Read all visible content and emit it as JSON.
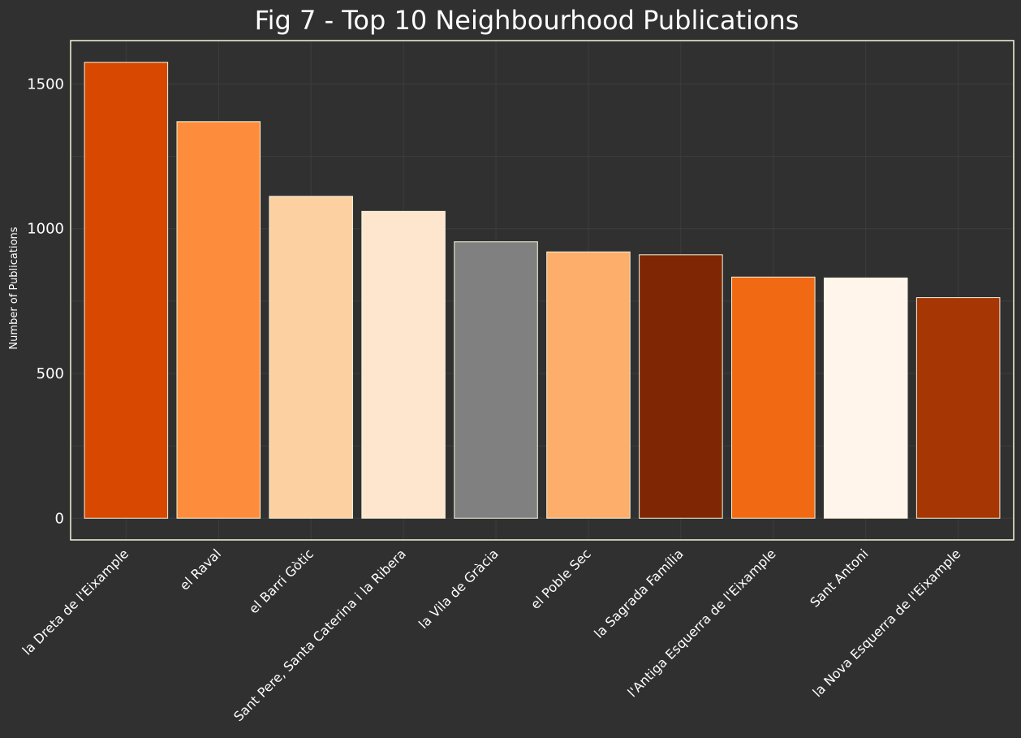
{
  "chart_data": {
    "type": "bar",
    "title": "Fig 7 - Top 10 Neighbourhood Publications",
    "xlabel": "",
    "ylabel": "Number of Publications",
    "categories": [
      "la Dreta de l'Eixample",
      "el Raval",
      "el Barri Gòtic",
      "Sant Pere, Santa Caterina i la Ribera",
      "la Vila de Gràcia",
      "el Poble Sec",
      "la Sagrada Família",
      "l'Antiga Esquerra de l'Eixample",
      "Sant Antoni",
      "la Nova Esquerra de l'Eixample"
    ],
    "values": [
      1575,
      1370,
      1112,
      1060,
      955,
      920,
      910,
      833,
      830,
      762
    ],
    "colors": [
      "#d84801",
      "#fd8d3c",
      "#fdd0a2",
      "#fee6ce",
      "#808080",
      "#fdae6b",
      "#7f2704",
      "#f16913",
      "#fff5eb",
      "#a63603"
    ],
    "ylim": [
      -75,
      1650
    ],
    "yticks": [
      0,
      500,
      1000,
      1500
    ],
    "grid": true,
    "legend": "none",
    "background": "#303030",
    "axes_edge_color": "#f5f5dc"
  }
}
